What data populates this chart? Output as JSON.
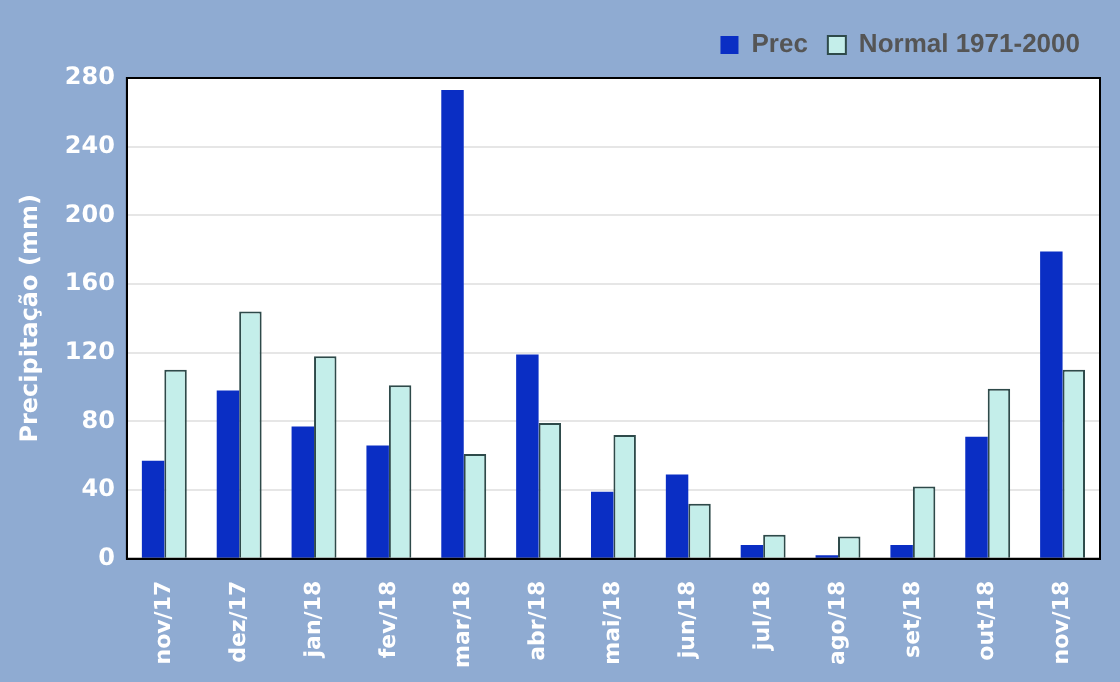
{
  "chart_data": {
    "type": "bar",
    "ylabel": "Precipitação (mm)",
    "categories": [
      "nov/17",
      "dez/17",
      "jan/18",
      "fev/18",
      "mar/18",
      "abr/18",
      "mai/18",
      "jun/18",
      "jul/18",
      "ago/18",
      "set/18",
      "out/18",
      "nov/18"
    ],
    "series": [
      {
        "name": "Prec",
        "color": "#0a2ec4",
        "values": [
          57,
          98,
          77,
          66,
          273,
          119,
          39,
          49,
          8,
          2,
          8,
          71,
          179
        ]
      },
      {
        "name": "Normal 1971-2000",
        "color": "#c4eeea",
        "values": [
          110,
          144,
          118,
          101,
          61,
          79,
          72,
          32,
          14,
          13,
          42,
          99,
          110
        ]
      }
    ],
    "ylim": [
      0,
      280
    ],
    "yticks": [
      0,
      40,
      80,
      120,
      160,
      200,
      240,
      280
    ],
    "grid": "y",
    "legend": "top right"
  }
}
